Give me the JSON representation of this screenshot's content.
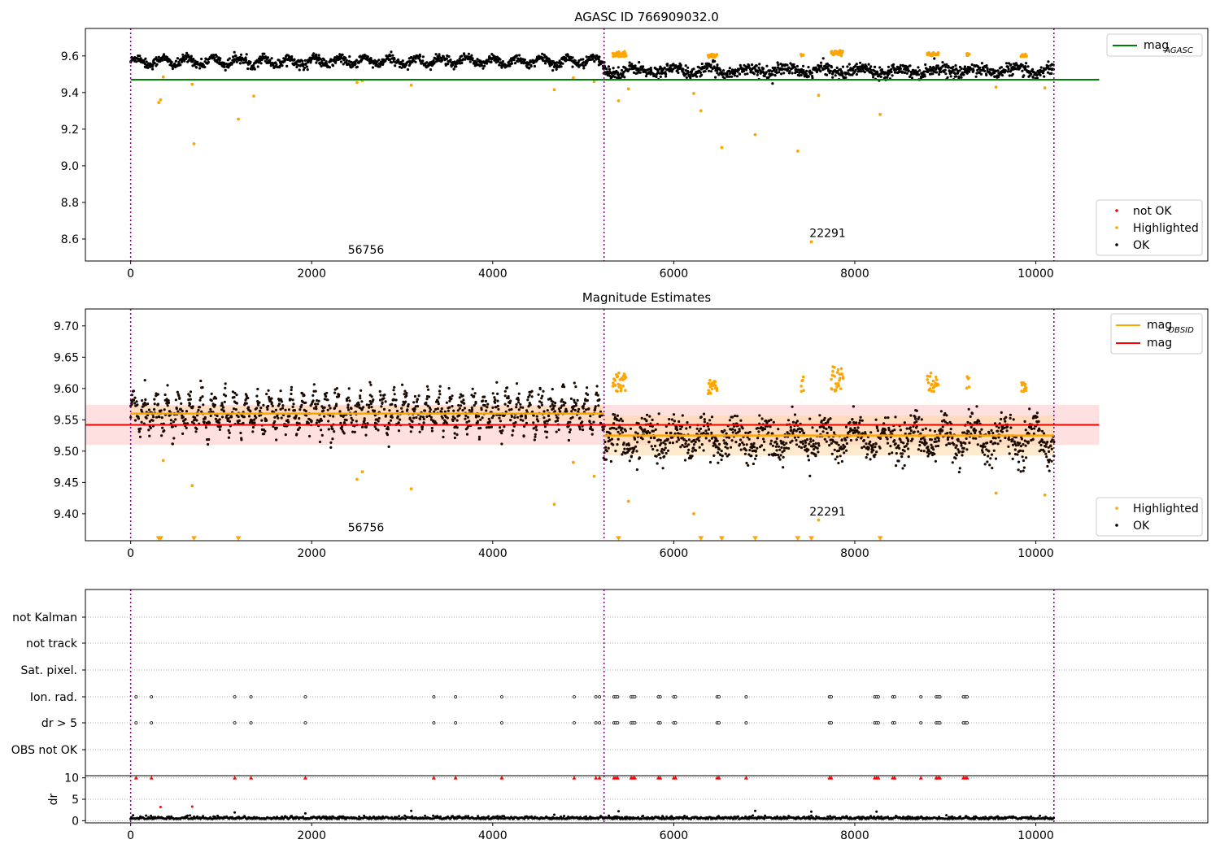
{
  "colors": {
    "ok": "#000000",
    "highlighted": "#ffa500",
    "not_ok": "#ff0000",
    "agasc_line": "#008000",
    "mag_line": "#ff0000",
    "mag_obsid_line": "#ffa500",
    "obs_boundary": "#800080",
    "mag_band_outer": "#ffcccc",
    "mag_band_inner": "#ffd9a6",
    "grid": "#b0b0b0"
  },
  "chart_data": [
    {
      "id": "agasc",
      "type": "scatter",
      "title": "AGASC ID 766909032.0",
      "xlabel": "",
      "ylabel": "",
      "xlim": [
        -500,
        11900
      ],
      "ylim": [
        8.48,
        9.75
      ],
      "x_ticks": [
        0,
        2000,
        4000,
        6000,
        8000,
        10000
      ],
      "y_ticks": [
        8.6,
        8.8,
        9.0,
        9.2,
        9.4,
        9.6
      ],
      "y_tick_decimals": 1,
      "grid": false,
      "obs_boundaries": [
        0,
        5230,
        10200
      ],
      "obsid_labels": [
        {
          "text": "56756",
          "x": 2600,
          "y": 8.52
        },
        {
          "text": "22291",
          "x": 7700,
          "y": 8.61
        }
      ],
      "reference_lines": [
        {
          "name": "mag",
          "sub": "AGASC",
          "value": 9.47,
          "x_range": [
            0,
            10700
          ]
        }
      ],
      "legend_top": [
        {
          "label": "mag",
          "sub": "AGASC",
          "kind": "line",
          "color": "#008000"
        }
      ],
      "legend_bottom": [
        {
          "label": "not OK",
          "kind": "dot",
          "color": "#ff0000"
        },
        {
          "label": "Highlighted",
          "kind": "dot",
          "color": "#ffa500"
        },
        {
          "label": "OK",
          "kind": "dot",
          "color": "#000000"
        }
      ],
      "series": [
        {
          "name": "OK",
          "kind": "band",
          "segments": [
            {
              "x_start": 0,
              "x_end": 5230,
              "center": 9.57,
              "amp": 0.02,
              "period": 280,
              "noise": 0.013
            },
            {
              "x_start": 5230,
              "x_end": 10200,
              "center": 9.52,
              "amp": 0.015,
              "period": 420,
              "noise": 0.016
            }
          ]
        },
        {
          "name": "Highlighted",
          "kind": "clusters",
          "clusters": [
            {
              "x_start": 5330,
              "x_end": 5480,
              "y_min": 9.595,
              "y_max": 9.625
            },
            {
              "x_start": 6380,
              "x_end": 6480,
              "y_min": 9.59,
              "y_max": 9.61
            },
            {
              "x_start": 7410,
              "x_end": 7440,
              "y_min": 9.6,
              "y_max": 9.615
            },
            {
              "x_start": 7740,
              "x_end": 7870,
              "y_min": 9.6,
              "y_max": 9.63
            },
            {
              "x_start": 8800,
              "x_end": 8920,
              "y_min": 9.6,
              "y_max": 9.62
            },
            {
              "x_start": 9240,
              "x_end": 9270,
              "y_min": 9.6,
              "y_max": 9.615
            },
            {
              "x_start": 9840,
              "x_end": 9900,
              "y_min": 9.595,
              "y_max": 9.61
            }
          ],
          "points": [
            [
              310,
              9.345
            ],
            [
              330,
              9.36
            ],
            [
              360,
              9.485
            ],
            [
              680,
              9.445
            ],
            [
              700,
              9.12
            ],
            [
              1190,
              9.255
            ],
            [
              1360,
              9.38
            ],
            [
              2500,
              9.455
            ],
            [
              2560,
              9.465
            ],
            [
              3100,
              9.44
            ],
            [
              4680,
              9.415
            ],
            [
              4890,
              9.48
            ],
            [
              5120,
              9.46
            ],
            [
              5390,
              9.355
            ],
            [
              5500,
              9.42
            ],
            [
              6220,
              9.395
            ],
            [
              6300,
              9.3
            ],
            [
              6530,
              9.1
            ],
            [
              6900,
              9.17
            ],
            [
              7370,
              9.08
            ],
            [
              7520,
              8.585
            ],
            [
              7600,
              9.385
            ],
            [
              8280,
              9.28
            ],
            [
              9560,
              9.43
            ],
            [
              10100,
              9.425
            ]
          ]
        }
      ]
    },
    {
      "id": "mag_estimates",
      "type": "scatter",
      "title": "Magnitude Estimates",
      "xlabel": "",
      "ylabel": "",
      "xlim": [
        -500,
        11900
      ],
      "ylim": [
        9.357,
        9.727
      ],
      "x_ticks": [
        0,
        2000,
        4000,
        6000,
        8000,
        10000
      ],
      "y_ticks": [
        9.4,
        9.45,
        9.5,
        9.55,
        9.6,
        9.65,
        9.7
      ],
      "y_tick_decimals": 2,
      "grid": false,
      "obs_boundaries": [
        0,
        5230,
        10200
      ],
      "obsid_labels": [
        {
          "text": "56756",
          "x": 2600,
          "y": 9.372
        },
        {
          "text": "22291",
          "x": 7700,
          "y": 9.397
        }
      ],
      "reference_lines": [
        {
          "name": "mag",
          "value": 9.542,
          "x_range": [
            -500,
            10700
          ],
          "band": [
            9.51,
            9.574
          ]
        }
      ],
      "obsid_lines": [
        {
          "x_range": [
            0,
            5230
          ],
          "value": 9.56,
          "band": [
            9.548,
            9.572
          ]
        },
        {
          "x_range": [
            5230,
            10200
          ],
          "value": 9.525,
          "band": [
            9.493,
            9.557
          ]
        }
      ],
      "legend_top": [
        {
          "label": "mag",
          "sub": "OBSID",
          "kind": "line",
          "color": "#ffa500"
        },
        {
          "label": "mag",
          "kind": "line",
          "color": "#ff0000"
        }
      ],
      "legend_bottom": [
        {
          "label": "Highlighted",
          "kind": "dot",
          "color": "#ffa500"
        },
        {
          "label": "OK",
          "kind": "dot",
          "color": "#000000"
        }
      ],
      "series": [
        {
          "name": "OK",
          "kind": "band",
          "segments": [
            {
              "x_start": 0,
              "x_end": 5230,
              "center": 9.562,
              "amp": 0.022,
              "period": 125,
              "noise": 0.012
            },
            {
              "x_start": 5230,
              "x_end": 10200,
              "center": 9.52,
              "amp": 0.018,
              "period": 330,
              "noise": 0.015
            }
          ]
        },
        {
          "name": "Highlighted",
          "kind": "clusters",
          "clusters": [
            {
              "x_start": 5330,
              "x_end": 5480,
              "y_min": 9.595,
              "y_max": 9.625
            },
            {
              "x_start": 6380,
              "x_end": 6480,
              "y_min": 9.59,
              "y_max": 9.615
            },
            {
              "x_start": 7410,
              "x_end": 7440,
              "y_min": 9.595,
              "y_max": 9.62
            },
            {
              "x_start": 7740,
              "x_end": 7870,
              "y_min": 9.595,
              "y_max": 9.635
            },
            {
              "x_start": 8800,
              "x_end": 8920,
              "y_min": 9.595,
              "y_max": 9.625
            },
            {
              "x_start": 9240,
              "x_end": 9270,
              "y_min": 9.6,
              "y_max": 9.62
            },
            {
              "x_start": 9840,
              "x_end": 9900,
              "y_min": 9.595,
              "y_max": 9.615
            }
          ],
          "points": [
            [
              360,
              9.485
            ],
            [
              680,
              9.445
            ],
            [
              2500,
              9.455
            ],
            [
              2560,
              9.467
            ],
            [
              3100,
              9.44
            ],
            [
              4680,
              9.415
            ],
            [
              4890,
              9.482
            ],
            [
              5120,
              9.46
            ],
            [
              5500,
              9.42
            ],
            [
              6220,
              9.4
            ],
            [
              7600,
              9.39
            ],
            [
              9560,
              9.433
            ],
            [
              10100,
              9.43
            ]
          ]
        },
        {
          "name": "Highlighted (off scale)",
          "kind": "markers",
          "marker": "triangle-down",
          "y": 9.361,
          "x": [
            310,
            330,
            700,
            1190,
            5390,
            6300,
            6530,
            6900,
            7370,
            7520,
            8280
          ]
        }
      ]
    },
    {
      "id": "flags",
      "type": "scatter",
      "title": "",
      "xlabel": "",
      "ylabel": "",
      "xlim": [
        -500,
        11900
      ],
      "categories": [
        "not Kalman",
        "not track",
        "Sat. pixel.",
        "Ion. rad.",
        "dr > 5",
        "OBS not OK"
      ],
      "obs_boundaries": [
        0,
        5230,
        10200
      ],
      "flag_events": {
        "Ion. rad.": [
          60,
          230,
          1150,
          1330,
          1930,
          3350,
          3590,
          4100,
          4900,
          5140,
          5180,
          5340,
          5360,
          5380,
          5530,
          5550,
          5570,
          5830,
          5850,
          6000,
          6020,
          6480,
          6500,
          6800,
          7720,
          7740,
          8220,
          8240,
          8260,
          8420,
          8440,
          8730,
          8900,
          8920,
          8940,
          9200,
          9220,
          9240
        ],
        "dr > 5": [
          60,
          230,
          1150,
          1330,
          1930,
          3350,
          3590,
          4100,
          4900,
          5140,
          5180,
          5340,
          5360,
          5380,
          5530,
          5550,
          5570,
          5830,
          5850,
          6000,
          6020,
          6480,
          6500,
          6800,
          7720,
          7740,
          8220,
          8240,
          8260,
          8420,
          8440,
          8730,
          8900,
          8920,
          8940,
          9200,
          9220,
          9240
        ]
      }
    },
    {
      "id": "dr",
      "type": "scatter",
      "title": "",
      "xlabel": "",
      "ylabel": "dr",
      "xlim": [
        -500,
        11900
      ],
      "ylim": [
        -0.5,
        10.5
      ],
      "x_ticks": [
        0,
        2000,
        4000,
        6000,
        8000,
        10000
      ],
      "y_ticks": [
        0,
        5,
        10
      ],
      "y_tick_decimals": 0,
      "obs_boundaries": [
        0,
        5230,
        10200
      ],
      "clip_value": 10,
      "series": [
        {
          "name": "OK",
          "kind": "noise",
          "x_start": 0,
          "x_end": 10200,
          "mean": 0.6,
          "spread": 0.5
        },
        {
          "name": "spikes",
          "points": [
            [
              1150,
              1.9
            ],
            [
              1930,
              1.7
            ],
            [
              3100,
              2.3
            ],
            [
              4680,
              1.4
            ],
            [
              5390,
              2.2
            ],
            [
              6900,
              2.3
            ],
            [
              7520,
              2.1
            ],
            [
              8240,
              2.1
            ]
          ]
        },
        {
          "name": "not OK",
          "points": [
            [
              330,
              3.2
            ],
            [
              680,
              3.3
            ]
          ]
        }
      ]
    }
  ]
}
